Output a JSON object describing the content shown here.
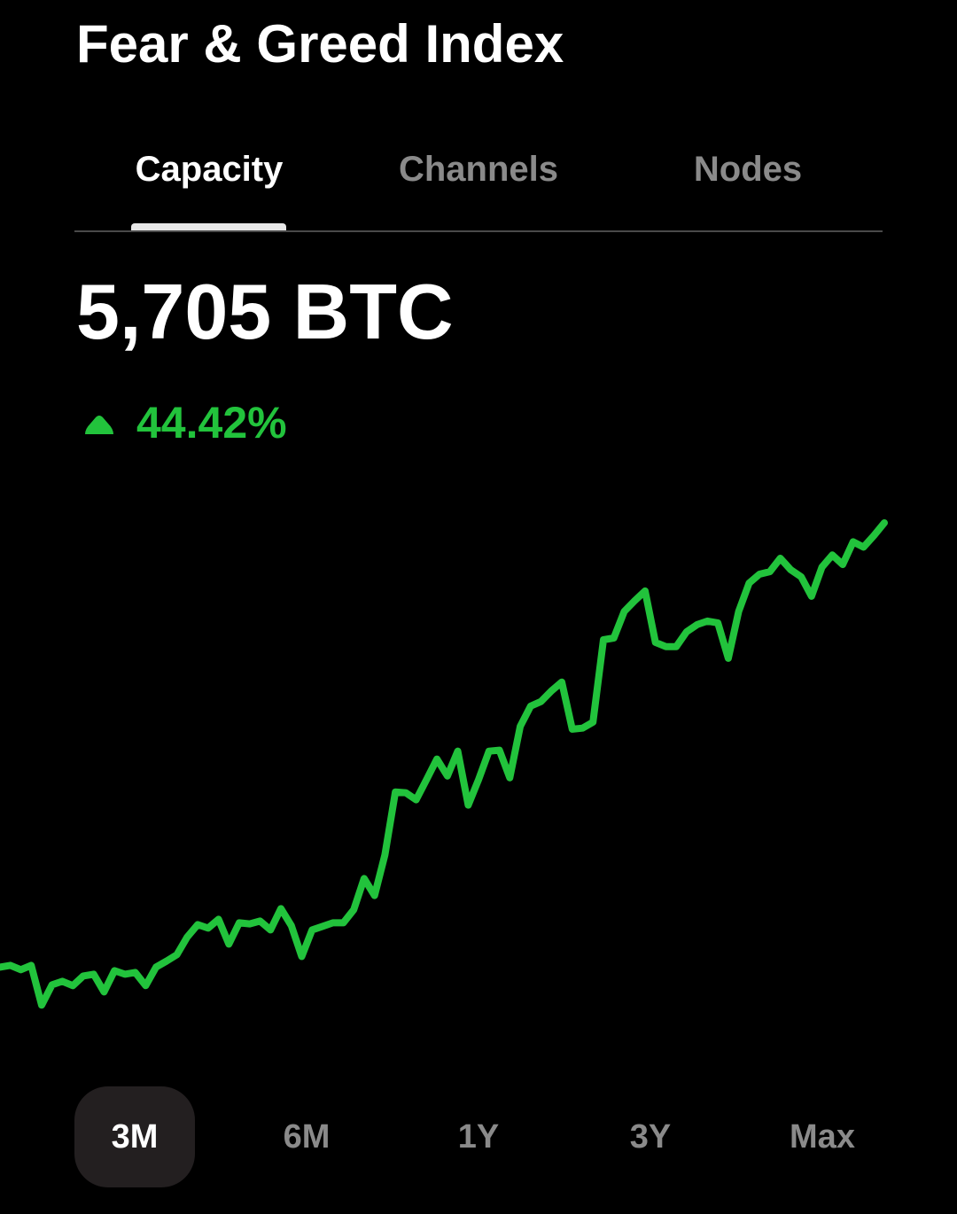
{
  "header": {
    "title": "Fear & Greed Index"
  },
  "tabs": [
    "Capacity",
    "Channels",
    "Nodes"
  ],
  "metric": {
    "value": "5,705 BTC",
    "change": "44.42%"
  },
  "chart_data": {
    "type": "line",
    "color": "#22c33c",
    "ylim": [
      3710,
      5810
    ],
    "values": [
      3950,
      3957,
      3940,
      3957,
      3800,
      3880,
      3894,
      3877,
      3915,
      3922,
      3852,
      3936,
      3922,
      3929,
      3877,
      3950,
      3974,
      3999,
      4069,
      4118,
      4104,
      4139,
      4041,
      4125,
      4121,
      4132,
      4097,
      4181,
      4114,
      3992,
      4097,
      4111,
      4125,
      4125,
      4177,
      4300,
      4233,
      4394,
      4642,
      4639,
      4611,
      4691,
      4772,
      4705,
      4803,
      4590,
      4691,
      4803,
      4807,
      4698,
      4901,
      4981,
      4999,
      5041,
      5076,
      4890,
      4894,
      4918,
      5243,
      5250,
      5355,
      5397,
      5436,
      5233,
      5216,
      5216,
      5275,
      5303,
      5317,
      5310,
      5170,
      5355,
      5467,
      5502,
      5512,
      5565,
      5520,
      5492,
      5415,
      5530,
      5578,
      5540,
      5630,
      5609,
      5655,
      5705
    ]
  },
  "ranges": [
    "3M",
    "6M",
    "1Y",
    "3Y",
    "Max"
  ]
}
